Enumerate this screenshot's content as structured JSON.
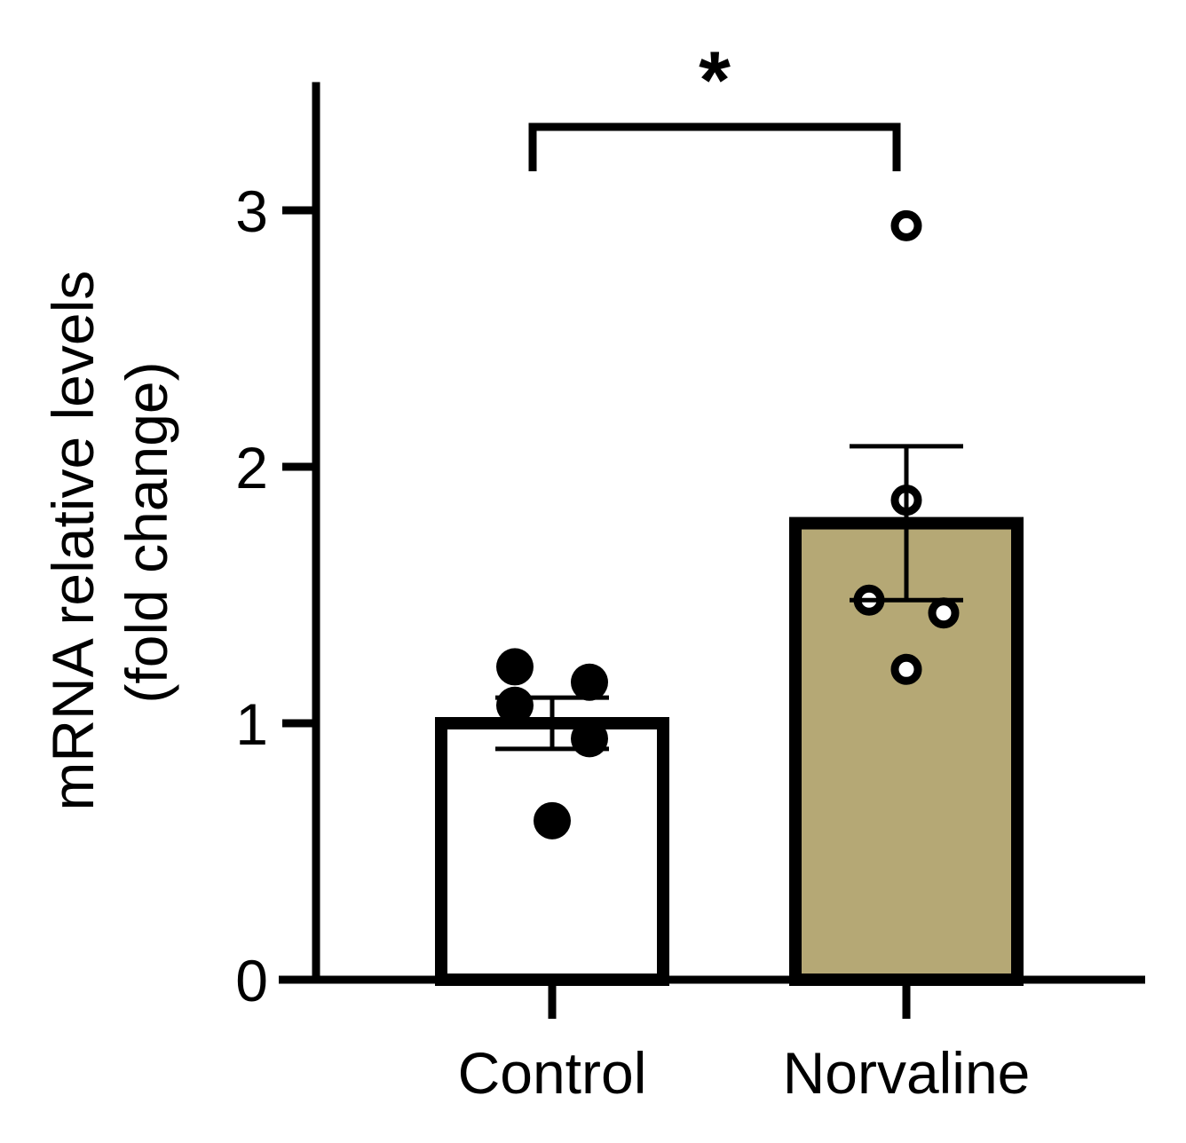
{
  "chart_data": {
    "type": "bar",
    "title": "",
    "ylabel_lines": [
      "mRNA relative levels",
      "(fold change)"
    ],
    "xlabel": "",
    "categories": [
      "Control",
      "Norvaline"
    ],
    "ylim": [
      0,
      3.5
    ],
    "yticks": [
      "0",
      "1",
      "2",
      "3"
    ],
    "bars": [
      {
        "category": "Control",
        "mean": 1.0,
        "sem_low": 0.9,
        "sem_high": 1.1,
        "fill": "#ffffff",
        "points": [
          1.22,
          1.16,
          1.07,
          0.94,
          0.62
        ],
        "point_style": "filled"
      },
      {
        "category": "Norvaline",
        "mean": 1.78,
        "sem_low": 1.48,
        "sem_high": 2.08,
        "fill": "#b5a875",
        "points": [
          2.94,
          1.87,
          1.48,
          1.43,
          1.21
        ],
        "point_style": "open"
      }
    ],
    "significance": {
      "label": "*",
      "between": [
        "Control",
        "Norvaline"
      ]
    },
    "grid": false,
    "legend": "none"
  }
}
